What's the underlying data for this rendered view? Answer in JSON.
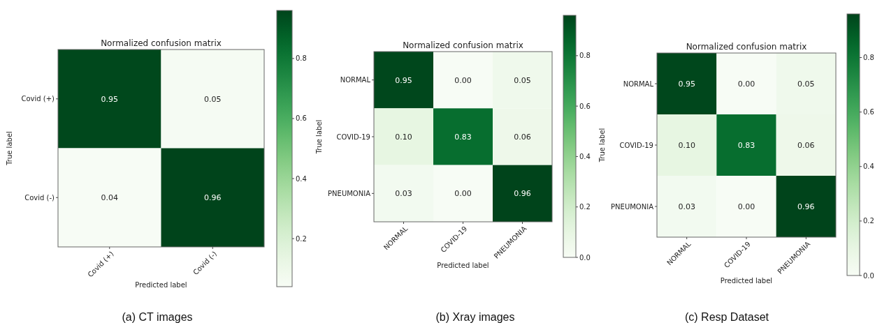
{
  "chart_data": [
    {
      "type": "heatmap",
      "title": "Normalized confusion matrix",
      "xlabel": "Predicted label",
      "ylabel": "True label",
      "categories": [
        "Covid (+)",
        "Covid (-)"
      ],
      "y_categories": [
        "Covid (+)",
        "Covid (-)"
      ],
      "cells": [
        [
          0.95,
          0.05
        ],
        [
          0.04,
          0.96
        ]
      ],
      "cell_labels": [
        [
          "0.95",
          "0.05"
        ],
        [
          "0.04",
          "0.96"
        ]
      ],
      "clim": [
        0.04,
        0.96
      ],
      "cticks": [
        0.2,
        0.4,
        0.6,
        0.8
      ],
      "annotations": [
        "(a) CT images"
      ]
    },
    {
      "type": "heatmap",
      "title": "Normalized confusion matrix",
      "xlabel": "Predicted label",
      "ylabel": "True label",
      "categories": [
        "NORMAL",
        "COVID-19",
        "PNEUMONIA"
      ],
      "y_categories": [
        "NORMAL",
        "COVID-19",
        "PNEUMONIA"
      ],
      "cells": [
        [
          0.95,
          0.0,
          0.05
        ],
        [
          0.1,
          0.83,
          0.06
        ],
        [
          0.03,
          0.0,
          0.96
        ]
      ],
      "cell_labels": [
        [
          "0.95",
          "0.00",
          "0.05"
        ],
        [
          "0.10",
          "0.83",
          "0.06"
        ],
        [
          "0.03",
          "0.00",
          "0.96"
        ]
      ],
      "clim": [
        0,
        0.96
      ],
      "cticks": [
        {
          "value": 0,
          "label": "0.0"
        },
        0.2,
        0.4,
        0.6,
        0.8
      ],
      "annotations": [
        "(b) Xray images"
      ]
    },
    {
      "type": "heatmap",
      "title": "Normalized confusion matrix",
      "xlabel": "Predicted label",
      "ylabel": "True label",
      "categories": [
        "NORMAL",
        "COVID-19",
        "PNEUMONIA"
      ],
      "y_categories": [
        "NORMAL",
        "COVID-19",
        "PNEUMONIA"
      ],
      "cells": [
        [
          0.95,
          0.0,
          0.05
        ],
        [
          0.1,
          0.83,
          0.06
        ],
        [
          0.03,
          0.0,
          0.96
        ]
      ],
      "cell_labels": [
        [
          "0.95",
          "0.00",
          "0.05"
        ],
        [
          "0.10",
          "0.83",
          "0.06"
        ],
        [
          "0.03",
          "0.00",
          "0.96"
        ]
      ],
      "clim": [
        0,
        0.96
      ],
      "cticks": [
        {
          "value": 0,
          "label": "0.0"
        },
        0.2,
        0.4,
        0.6,
        0.8
      ],
      "annotations": [
        "(c) Resp Dataset"
      ]
    }
  ]
}
